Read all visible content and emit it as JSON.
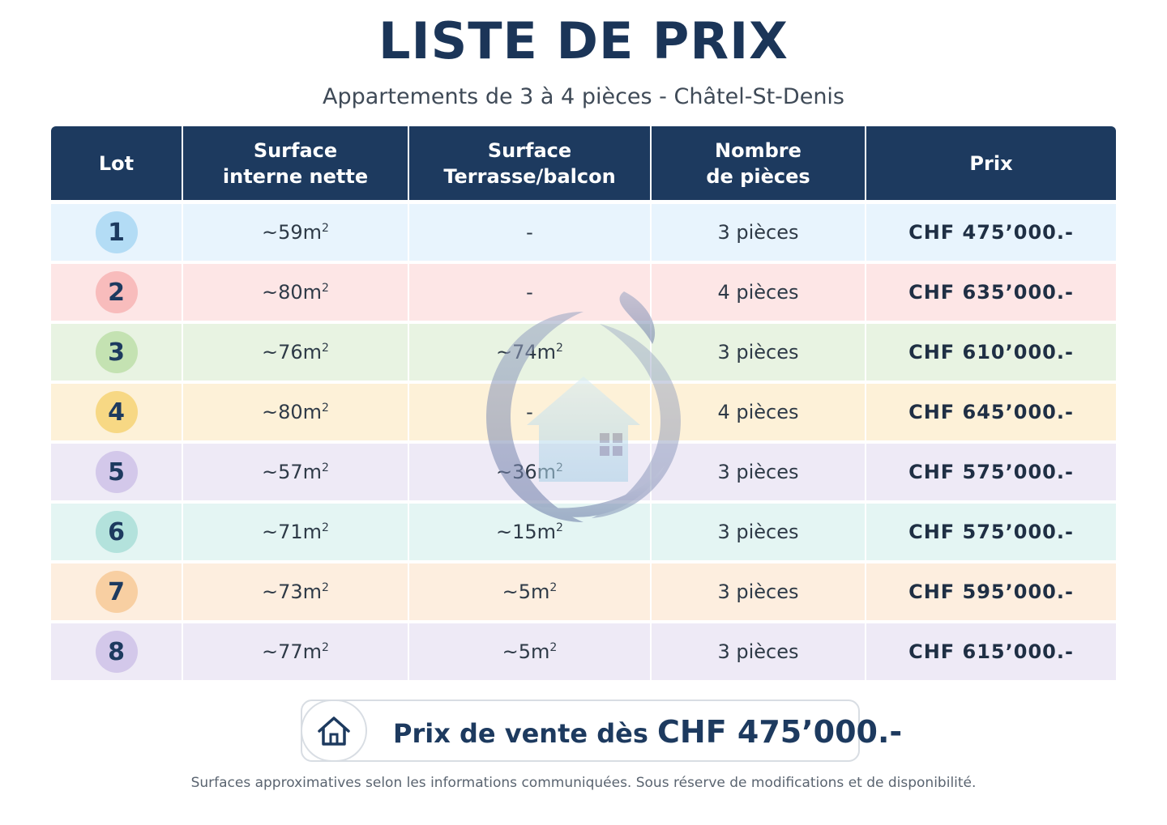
{
  "header": {
    "title": "LISTE DE PRIX",
    "subtitle": "Appartements de 3 à 4 pièces - Châtel-St-Denis"
  },
  "table": {
    "columns": [
      "Lot",
      "Surface\ninterne nette",
      "Surface\nTerrasse/balcon",
      "Nombre\nde pièces",
      "Prix"
    ],
    "rows": [
      {
        "lot": "1",
        "interne": "~59m",
        "terrasse": "-",
        "pieces": "3 pièces",
        "prix": "CHF 475’000.-"
      },
      {
        "lot": "2",
        "interne": "~80m",
        "terrasse": "-",
        "pieces": "4 pièces",
        "prix": "CHF 635’000.-"
      },
      {
        "lot": "3",
        "interne": "~76m",
        "terrasse": "~74m",
        "pieces": "3 pièces",
        "prix": "CHF 610’000.-"
      },
      {
        "lot": "4",
        "interne": "~80m",
        "terrasse": "-",
        "pieces": "4 pièces",
        "prix": "CHF 645’000.-"
      },
      {
        "lot": "5",
        "interne": "~57m",
        "terrasse": "~36m",
        "pieces": "3 pièces",
        "prix": "CHF 575’000.-"
      },
      {
        "lot": "6",
        "interne": "~71m",
        "terrasse": "~15m",
        "pieces": "3 pièces",
        "prix": "CHF 575’000.-"
      },
      {
        "lot": "7",
        "interne": "~73m",
        "terrasse": "~5m",
        "pieces": "3 pièces",
        "prix": "CHF 595’000.-"
      },
      {
        "lot": "8",
        "interne": "~77m",
        "terrasse": "~5m",
        "pieces": "3 pièces",
        "prix": "CHF 615’000.-"
      }
    ],
    "superscript": "2"
  },
  "promo": {
    "text_prefix": "Prix de vente dès ",
    "text_price": "CHF 475’000.-",
    "icon": "house-icon"
  },
  "footnote": "Surfaces approximatives selon les informations communiquées. Sous réserve de modifications et de disponibilité.",
  "colors": {
    "navy": "#1d3a5f",
    "watermark_icon": "house-swirl-watermark-icon"
  }
}
